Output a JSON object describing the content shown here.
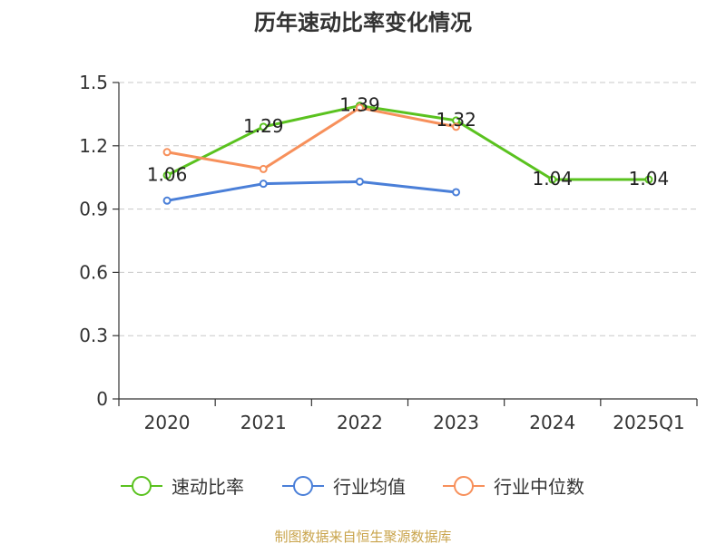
{
  "chart_data": {
    "type": "line",
    "title": "历年速动比率变化情况",
    "categories": [
      "2020",
      "2021",
      "2022",
      "2023",
      "2024",
      "2025Q1"
    ],
    "yticks": [
      "0",
      "0.3",
      "0.6",
      "0.9",
      "1.2",
      "1.5"
    ],
    "ylim": [
      0,
      1.5
    ],
    "grid": true,
    "legend_position": "bottom",
    "series": [
      {
        "name": "速动比率",
        "color": "#5ac21f",
        "values": [
          1.06,
          1.29,
          1.39,
          1.32,
          1.04,
          1.04
        ],
        "labels": [
          "1.06",
          "1.29",
          "1.39",
          "1.32",
          "1.04",
          "1.04"
        ]
      },
      {
        "name": "行业均值",
        "color": "#4a7fd8",
        "values": [
          0.94,
          1.02,
          1.03,
          0.98,
          null,
          null
        ]
      },
      {
        "name": "行业中位数",
        "color": "#f7905b",
        "values": [
          1.17,
          1.09,
          1.38,
          1.29,
          null,
          null
        ]
      }
    ]
  },
  "source": {
    "text": "制图数据来自恒生聚源数据库",
    "color": "#c9a44c"
  }
}
